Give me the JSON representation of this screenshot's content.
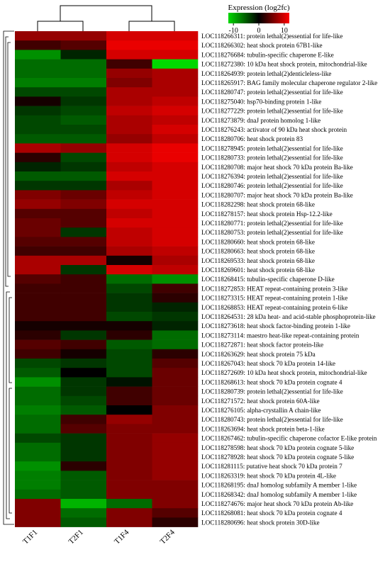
{
  "chart_data": {
    "type": "heatmap",
    "legend_title": "Expression (log2fc)",
    "legend_ticks": [
      "-10",
      "0",
      "10"
    ],
    "legend_range": [
      -12,
      12
    ],
    "colors": {
      "low": "#00d800",
      "mid": "#000000",
      "high": "#ff0000"
    },
    "columns": [
      "T1F1",
      "T2F1",
      "T1F4",
      "T2F4"
    ],
    "rows": [
      "LOC118266311: protein lethal(2)essential for life-like",
      "LOC118266302: heat shock protein 67B1-like",
      "LOC118276684: tubulin-specific chaperone E-like",
      "LOC118272380: 10 kDa heat shock protein, mitochondrial-like",
      "LOC118264939: protein lethal(2)denticleless-like",
      "LOC118265917: BAG family molecular chaperone regulator 2-like",
      "LOC118280747: protein lethal(2)essential for life-like",
      "LOC118275040: hsp70-binding protein 1-like",
      "LOC118277229: protein lethal(2)essential for life-like",
      "LOC118273879: dnaJ protein homolog 1-like",
      "LOC118276243: activator of 90 kDa heat shock protein",
      "LOC118280706: heat shock protein 83",
      "LOC118278945: protein lethal(2)essential for life-like",
      "LOC118280733: protein lethal(2)essential for life-like",
      "LOC118280708: major heat shock 70 kDa protein Ba-like",
      "LOC118276394: protein lethal(2)essential for life-like",
      "LOC118280746: protein lethal(2)essential for life-like",
      "LOC118280707: major heat shock 70 kDa protein Ba-like",
      "LOC118282298: heat shock protein 68-like",
      "LOC118278157: heat shock protein Hsp-12.2-like",
      "LOC118280771: protein lethal(2)essential for life-like",
      "LOC118280753: protein lethal(2)essential for life-like",
      "LOC118280660: heat shock protein 68-like",
      "LOC118280663: heat shock protein 68-like",
      "LOC118269533: heat shock protein 68-like",
      "LOC118269601: heat shock protein 68-like",
      "LOC118268415: tubulin-specific chaperone D-like",
      "LOC118272853: HEAT repeat-containing protein 3-like",
      "LOC118273315: HEAT repeat-containing protein 1-like",
      "LOC118268853: HEAT repeat-containing protein 6-like",
      "LOC118264531: 28 kDa heat- and acid-stable phosphoprotein-like",
      "LOC118273618: heat shock factor-binding protein 1-like",
      "LOC118273114: maestro heat-like repeat-containing protein",
      "LOC118272871: heat shock factor protein-like",
      "LOC118263629: heat shock protein 75 kDa",
      "LOC118267043: heat shock 70 kDa protein 14-like",
      "LOC118272609: 10 kDa heat shock protein, mitochondrial-like",
      "LOC118268613: heat shock 70 kDa protein cognate 4",
      "LOC118280739: protein lethal(2)essential for life-like",
      "LOC118271572: heat shock protein 60A-like",
      "LOC118276105: alpha-crystallin A chain-like",
      "LOC118280743: protein lethal(2)essential for life-like",
      "LOC118263694: heat shock protein beta-1-like",
      "LOC118267462: tubulin-specific chaperone cofactor E-like protein",
      "LOC118278598: heat shock 70 kDa protein cognate 5-like",
      "LOC118278928: heat shock 70 kDa protein cognate 5-like",
      "LOC118281115: putative heat shock 70 kDa protein 7",
      "LOC118263319: heat shock 70 kDa protein 4L-like",
      "LOC118268195: dnaJ homolog subfamily A member 1-like",
      "LOC118268342: dnaJ homolog subfamily A member 1-like",
      "LOC118274676: major heat shock 70 kDa protein Ab-like",
      "LOC118268081: heat shock 70 kDa protein cognate 4",
      "LOC118280696: heat shock protein 30D-like"
    ],
    "values": [
      [
        7,
        7,
        10,
        10
      ],
      [
        3,
        4,
        11,
        11
      ],
      [
        -8,
        -2,
        10,
        10
      ],
      [
        -6,
        -6,
        3,
        -12
      ],
      [
        -6,
        -6,
        7,
        8
      ],
      [
        -7,
        -7,
        6,
        8
      ],
      [
        -4,
        -4,
        8,
        8
      ],
      [
        1,
        -3,
        8,
        9
      ],
      [
        -3,
        -4,
        9,
        10
      ],
      [
        -4,
        -5,
        8,
        9
      ],
      [
        -4,
        -4,
        8,
        10
      ],
      [
        -5,
        -5,
        7,
        9
      ],
      [
        8,
        7,
        10,
        11
      ],
      [
        2,
        -4,
        10,
        11
      ],
      [
        -2,
        -3,
        9,
        10
      ],
      [
        -5,
        -5,
        10,
        10
      ],
      [
        -3,
        -3,
        8,
        10
      ],
      [
        6,
        5,
        9,
        10
      ],
      [
        7,
        6,
        10,
        10
      ],
      [
        4,
        4,
        9,
        10
      ],
      [
        5,
        4,
        10,
        10
      ],
      [
        5,
        -3,
        9,
        10
      ],
      [
        4,
        4,
        9,
        10
      ],
      [
        3,
        3,
        8,
        9
      ],
      [
        8,
        8,
        1,
        8
      ],
      [
        8,
        -3,
        10,
        9
      ],
      [
        4,
        3,
        -6,
        -8
      ],
      [
        3,
        3,
        -4,
        3
      ],
      [
        3,
        3,
        -3,
        2
      ],
      [
        3,
        3,
        -3,
        -2
      ],
      [
        3,
        3,
        -4,
        -3
      ],
      [
        1,
        1,
        1,
        -2
      ],
      [
        2,
        -3,
        2,
        -6
      ],
      [
        4,
        3,
        -5,
        -6
      ],
      [
        3,
        1,
        -4,
        2
      ],
      [
        -4,
        -3,
        -4,
        4
      ],
      [
        -5,
        0,
        -4,
        5
      ],
      [
        -8,
        -3,
        -1,
        5
      ],
      [
        -6,
        -3,
        3,
        5
      ],
      [
        -6,
        -4,
        3,
        5
      ],
      [
        -7,
        -5,
        0,
        6
      ],
      [
        -6,
        3,
        7,
        6
      ],
      [
        -6,
        4,
        6,
        6
      ],
      [
        -4,
        -3,
        6,
        7
      ],
      [
        -6,
        -3,
        6,
        7
      ],
      [
        -6,
        -3,
        6,
        7
      ],
      [
        -8,
        2,
        6,
        7
      ],
      [
        -7,
        -5,
        6,
        7
      ],
      [
        -7,
        -5,
        6,
        6
      ],
      [
        -6,
        -5,
        6,
        6
      ],
      [
        6,
        -10,
        -6,
        6
      ],
      [
        6,
        -6,
        6,
        4
      ],
      [
        6,
        -5,
        6,
        2
      ]
    ]
  }
}
